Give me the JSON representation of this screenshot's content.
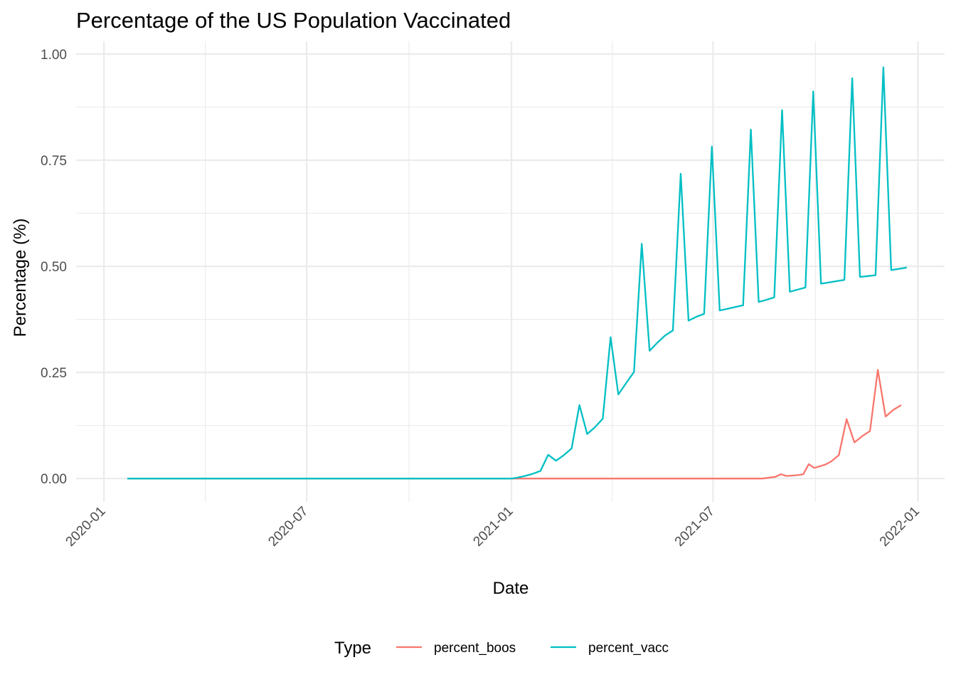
{
  "chart_data": {
    "type": "line",
    "title": "Percentage of the US Population Vaccinated",
    "xlabel": "Date",
    "ylabel": "Percentage (%)",
    "xlim": [
      "2019-12-07",
      "2022-01-25"
    ],
    "ylim": [
      -0.055,
      1.03
    ],
    "x_ticks": [
      "2020-01-01",
      "2020-07-01",
      "2021-01-01",
      "2021-07-01",
      "2022-01-01"
    ],
    "x_tick_labels": [
      "2020-01",
      "2020-07",
      "2021-01",
      "2021-07",
      "2022-01"
    ],
    "y_ticks": [
      0,
      0.25,
      0.5,
      0.75,
      1.0
    ],
    "y_tick_labels": [
      "0.00",
      "0.25",
      "0.50",
      "0.75",
      "1.00"
    ],
    "grid": true,
    "legend": {
      "title": "Type",
      "position": "bottom"
    },
    "series": [
      {
        "name": "percent_boos",
        "color": "#F8766D",
        "points": [
          [
            "2020-01-22",
            0
          ],
          [
            "2020-07-01",
            0
          ],
          [
            "2021-01-01",
            0
          ],
          [
            "2021-04-01",
            0
          ],
          [
            "2021-07-01",
            0
          ],
          [
            "2021-08-14",
            0
          ],
          [
            "2021-08-26",
            0.004
          ],
          [
            "2021-08-31",
            0.01
          ],
          [
            "2021-09-05",
            0.006
          ],
          [
            "2021-09-15",
            0.008
          ],
          [
            "2021-09-20",
            0.01
          ],
          [
            "2021-09-25",
            0.034
          ],
          [
            "2021-09-30",
            0.025
          ],
          [
            "2021-10-10",
            0.033
          ],
          [
            "2021-10-15",
            0.04
          ],
          [
            "2021-10-22",
            0.055
          ],
          [
            "2021-10-29",
            0.14
          ],
          [
            "2021-11-05",
            0.085
          ],
          [
            "2021-11-12",
            0.1
          ],
          [
            "2021-11-19",
            0.112
          ],
          [
            "2021-11-26",
            0.256
          ],
          [
            "2021-12-03",
            0.146
          ],
          [
            "2021-12-10",
            0.162
          ],
          [
            "2021-12-17",
            0.173
          ]
        ]
      },
      {
        "name": "percent_vacc",
        "color": "#00BFC4",
        "points": [
          [
            "2020-01-22",
            0
          ],
          [
            "2020-07-01",
            0
          ],
          [
            "2021-01-01",
            0
          ],
          [
            "2021-01-06",
            0.002
          ],
          [
            "2021-01-13",
            0.006
          ],
          [
            "2021-01-20",
            0.011
          ],
          [
            "2021-01-27",
            0.018
          ],
          [
            "2021-02-03",
            0.056
          ],
          [
            "2021-02-10",
            0.042
          ],
          [
            "2021-02-17",
            0.055
          ],
          [
            "2021-02-24",
            0.071
          ],
          [
            "2021-03-03",
            0.173
          ],
          [
            "2021-03-10",
            0.105
          ],
          [
            "2021-03-17",
            0.121
          ],
          [
            "2021-03-24",
            0.141
          ],
          [
            "2021-03-31",
            0.333
          ],
          [
            "2021-04-07",
            0.198
          ],
          [
            "2021-04-14",
            0.225
          ],
          [
            "2021-04-21",
            0.251
          ],
          [
            "2021-04-28",
            0.553
          ],
          [
            "2021-05-05",
            0.301
          ],
          [
            "2021-05-12",
            0.32
          ],
          [
            "2021-05-19",
            0.337
          ],
          [
            "2021-05-26",
            0.349
          ],
          [
            "2021-06-02",
            0.718
          ],
          [
            "2021-06-09",
            0.372
          ],
          [
            "2021-06-16",
            0.381
          ],
          [
            "2021-06-23",
            0.388
          ],
          [
            "2021-06-30",
            0.782
          ],
          [
            "2021-07-07",
            0.396
          ],
          [
            "2021-07-14",
            0.4
          ],
          [
            "2021-07-21",
            0.404
          ],
          [
            "2021-07-28",
            0.408
          ],
          [
            "2021-08-04",
            0.822
          ],
          [
            "2021-08-11",
            0.416
          ],
          [
            "2021-08-18",
            0.421
          ],
          [
            "2021-08-25",
            0.427
          ],
          [
            "2021-09-01",
            0.868
          ],
          [
            "2021-09-08",
            0.44
          ],
          [
            "2021-09-15",
            0.445
          ],
          [
            "2021-09-22",
            0.45
          ],
          [
            "2021-09-29",
            0.912
          ],
          [
            "2021-10-06",
            0.459
          ],
          [
            "2021-10-13",
            0.462
          ],
          [
            "2021-10-20",
            0.465
          ],
          [
            "2021-10-27",
            0.468
          ],
          [
            "2021-11-03",
            0.943
          ],
          [
            "2021-11-10",
            0.475
          ],
          [
            "2021-11-17",
            0.477
          ],
          [
            "2021-11-24",
            0.479
          ],
          [
            "2021-12-01",
            0.969
          ],
          [
            "2021-12-08",
            0.491
          ],
          [
            "2021-12-15",
            0.494
          ],
          [
            "2021-12-22",
            0.497
          ]
        ]
      }
    ]
  }
}
